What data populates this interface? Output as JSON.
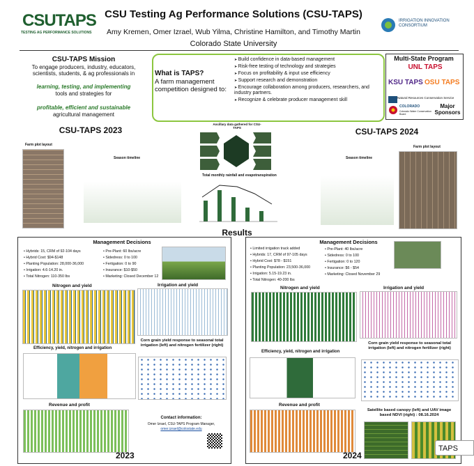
{
  "header": {
    "logo": "CSUTAPS",
    "logo_tagline": "TESTING AG PERFORMANCE SOLUTIONS",
    "title": "CSU Testing Ag Performance Solutions (CSU-TAPS)",
    "authors": "Amy Kremen, Omer Izrael, Wub Yilma, Christine Hamilton, and Timothy Martin",
    "affiliation": "Colorado State University",
    "partner": "IRRIGATION INNOVATION CONSORTIUM"
  },
  "mission": {
    "title": "CSU-TAPS Mission",
    "line1": "To engage producers, industry, educators, scientists, students, & ag professionals in",
    "emphasis1": "learning, testing, and implementing",
    "line2": "tools and strategies for",
    "emphasis2": "profitable, efficient and sustainable",
    "line3": "agricultural management"
  },
  "what": {
    "title": "What is TAPS?",
    "subtitle": "A farm management competition designed to:",
    "bullets": [
      "Build confidence in data-based management",
      "Risk-free testing of technology and strategies",
      "Focus on profitability & input use efficiency",
      "Support research and demonstration",
      "Encourage collaboration among producers, researchers, and industry partners.",
      "Recognize & celebrate producer management skill"
    ]
  },
  "multistate": {
    "title": "Multi-State Program",
    "programs": [
      "UNL TAPS",
      "KSU TAPS",
      "OSU TAPS"
    ],
    "sponsor1": "Natural Resources Conservation Service",
    "sponsor2": "COLORADO",
    "sponsor2_sub": "Colorado Water Conservation Board",
    "sponsors_label": "Major Sponsors"
  },
  "overview": {
    "title_2023": "CSU-TAPS 2023",
    "title_2024": "CSU-TAPS 2024",
    "farm_layout": "Farm plot layout",
    "season_timeline": "Season timeline",
    "ancillary": "Ancillary data gathered for CSU-TAPS",
    "rainfall": "Total monthly rainfall and evapotranspiration"
  },
  "results": {
    "title": "Results"
  },
  "panel_2023": {
    "heading": "Management Decisions",
    "left": [
      "Hybrids: 15, CRM of 92-104 days",
      "Hybrid Cost: $94-$148",
      "Planting Population: 28,000-36,000",
      "Irrigation: 4.6-14.20 in.",
      "Total Nitrogen: 110-350 lbs"
    ],
    "right": [
      "Pre-Plant: 60 lbs/acre",
      "Sidedress: 0 to 100",
      "Fertigation: 0 to 90",
      "Insurance: $10-$50",
      "Marketing: Closed December 12"
    ],
    "nitrogen": "Nitrogen and yield",
    "irrigation": "Irrigation and yield",
    "efficiency": "Efficiency, yield, nitrogen and irrigation",
    "response": "Corn grain yield response to seasonal total irrigation (left) and nitrogen fertilizer (right)",
    "revenue": "Revenue and profit",
    "contact_title": "Contact information:",
    "contact_name": "Omer Izrael, CSU-TAPS Program Manager,",
    "contact_email": "omer.izrael@colostate.edu",
    "year": "2023"
  },
  "panel_2024": {
    "heading": "Management Decisions",
    "left": [
      "Limited irrigation track added",
      "Hybrids: 17, CRM of 97-105 days",
      "Hybrid Cost: $78 - $151",
      "Planting Population: 23,500-36,000",
      "Irrigation: 5.15-19.23 in.",
      "Total Nitrogen: 40-200 lbs"
    ],
    "right": [
      "Pre-Plant: 40 lbs/acre",
      "Sidedress: 0 to 100",
      "Fertigation: 0 to 120",
      "Insurance: $6 - $54",
      "Marketing: Closed November 29"
    ],
    "nitrogen": "Nitrogen and yield",
    "irrigation": "Irrigation and yield",
    "efficiency": "Efficiency, yield, nitrogen and irrigation",
    "response": "Corn grain yield response to seasonal total irrigation (left) and nitrogen fertilizer (right)",
    "revenue": "Revenue and profit",
    "satellite": "Satellite based canopy (left) and UAV image based NDVI (right) : 08.16.2024",
    "year": "2024"
  },
  "tab": "TAPS"
}
